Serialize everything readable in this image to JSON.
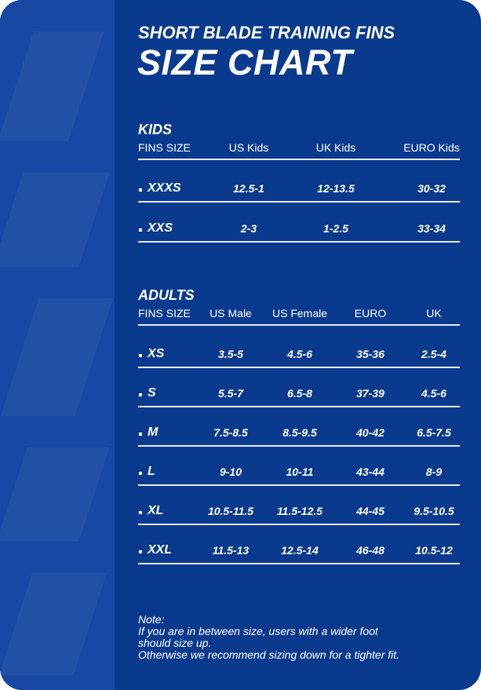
{
  "header": {
    "subtitle": "SHORT BLADE TRAINING FINS",
    "title": "SIZE CHART"
  },
  "kids": {
    "title": "KIDS",
    "columns": [
      "FINS SIZE",
      "US Kids",
      "UK Kids",
      "EURO Kids"
    ],
    "rows": [
      [
        "XXXS",
        "12.5-1",
        "12-13.5",
        "30-32"
      ],
      [
        "XXS",
        "2-3",
        "1-2.5",
        "33-34"
      ]
    ]
  },
  "adults": {
    "title": "ADULTS",
    "columns": [
      "FINS SIZE",
      "US Male",
      "US Female",
      "EURO",
      "UK"
    ],
    "rows": [
      [
        "XS",
        "3.5-5",
        "4.5-6",
        "35-36",
        "2.5-4"
      ],
      [
        "S",
        "5.5-7",
        "6.5-8",
        "37-39",
        "4.5-6"
      ],
      [
        "M",
        "7.5-8.5",
        "8.5-9.5",
        "40-42",
        "6.5-7.5"
      ],
      [
        "L",
        "9-10",
        "10-11",
        "43-44",
        "8-9"
      ],
      [
        "XL",
        "10.5-11.5",
        "11.5-12.5",
        "44-45",
        "9.5-10.5"
      ],
      [
        "XXL",
        "11.5-13",
        "12.5-14",
        "46-48",
        "10.5-12"
      ]
    ]
  },
  "note": {
    "label": "Note:",
    "lines": [
      "If you are in between size, users with a wider foot",
      "should size up.",
      "Otherwise we recommend sizing down for a tighter fit."
    ]
  }
}
